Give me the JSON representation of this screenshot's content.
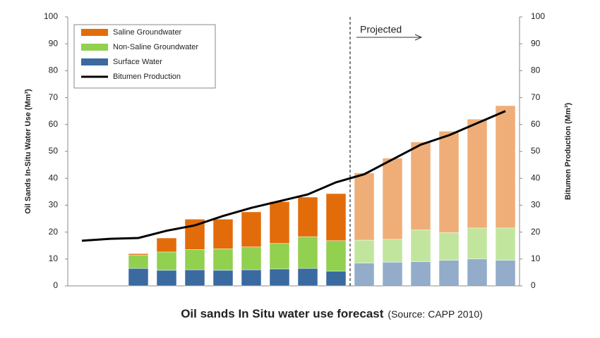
{
  "chart_data": {
    "type": "bar",
    "title": "Oil sands In Situ water use forecast",
    "subtitle": "(Source: CAPP 2010)",
    "y_label": "Oil Sands In-Situ Water Use (Mm³)",
    "y2_label": "Bitumen Production (Mm³)",
    "annotation": {
      "text": "Projected",
      "start_index": 10
    },
    "stacked": true,
    "grid": false,
    "legend": "top-left",
    "categories": [
      null,
      null,
      null,
      null,
      null,
      null,
      null,
      null,
      null,
      null,
      null,
      null,
      null,
      null,
      null,
      null
    ],
    "series": [
      {
        "name": "Saline Groundwater",
        "color": "#e36c0a",
        "values": [
          null,
          null,
          0.5,
          5.2,
          11.3,
          11,
          13,
          15.5,
          14.7,
          17.5,
          25,
          30.2,
          32.7,
          37.7,
          40.5,
          45.5
        ]
      },
      {
        "name": "Non-Saline Groundwater",
        "color": "#92d050",
        "values": [
          null,
          null,
          5,
          6.8,
          7.5,
          8,
          8.5,
          9.5,
          11.8,
          11.3,
          8.5,
          8.5,
          11.8,
          10.3,
          11.5,
          12
        ]
      },
      {
        "name": "Surface Water",
        "color": "#3a6aa0",
        "values": [
          null,
          null,
          6.5,
          5.8,
          6,
          5.8,
          6,
          6.3,
          6.5,
          5.5,
          8.5,
          8.8,
          9,
          9.5,
          10,
          9.5
        ]
      },
      {
        "name": "Bitumen Production",
        "type": "line",
        "axis": "y2",
        "color": "#000000",
        "values": [
          16.8,
          17.5,
          17.8,
          20.5,
          22.5,
          26,
          29,
          31.5,
          34,
          38.5,
          41.5,
          47,
          52.5,
          56,
          60.5,
          65
        ]
      }
    ],
    "ylim": [
      0,
      100
    ],
    "yticks": [
      0,
      10,
      20,
      30,
      40,
      50,
      60,
      70,
      80,
      90,
      100
    ],
    "y2lim": [
      0,
      100
    ],
    "y2ticks": [
      0,
      10,
      20,
      30,
      40,
      50,
      60,
      70,
      80,
      90,
      100
    ]
  }
}
